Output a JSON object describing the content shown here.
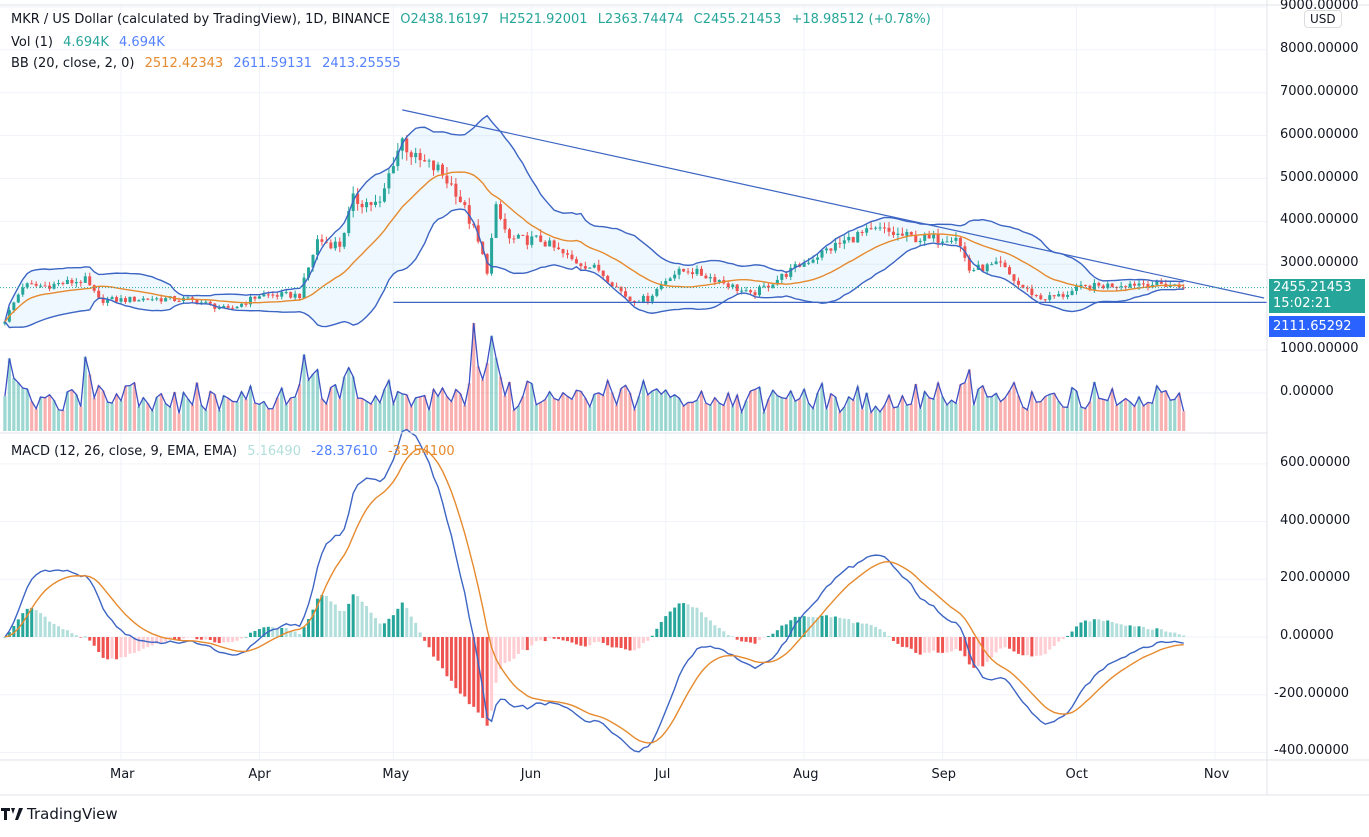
{
  "legend": {
    "symbol": "MKR / US Dollar (calculated by TradingView), 1D, BINANCE",
    "open": "O2438.16197",
    "high": "H2521.92001",
    "low": "L2363.74474",
    "close": "C2455.21453",
    "change": "+18.98512 (+0.78%)",
    "vol_label": "Vol (1)",
    "vol_value": "4.694K",
    "vol_ma": "4.694K",
    "bb_label": "BB (20, close, 2, 0)",
    "bb_basis": "2512.42343",
    "bb_upper": "2611.59131",
    "bb_lower": "2413.25555",
    "macd_label": "MACD (12, 26, close, 9, EMA, EMA)",
    "macd_hist": "5.16490",
    "macd_line": "-28.37610",
    "macd_signal": "-33.54100"
  },
  "price_axis": {
    "currency": "USD",
    "ticks": [
      "9000.00000",
      "8000.00000",
      "7000.00000",
      "6000.00000",
      "5000.00000",
      "4000.00000",
      "3000.00000",
      "1000.00000",
      "0.00000"
    ],
    "tick_values": [
      9000,
      8000,
      7000,
      6000,
      5000,
      4000,
      3000,
      1000,
      0
    ],
    "last_price": "2455.21453",
    "countdown": "15:02:21",
    "support_label": "2111.65292"
  },
  "macd_axis": {
    "ticks": [
      "600.00000",
      "400.00000",
      "200.00000",
      "0.00000",
      "-200.00000",
      "-400.00000"
    ],
    "tick_values": [
      600,
      400,
      200,
      0,
      -200,
      -400
    ]
  },
  "time_axis": {
    "ticks": [
      "Mar",
      "Apr",
      "May",
      "Jun",
      "Jul",
      "Aug",
      "Sep",
      "Oct",
      "Nov"
    ]
  },
  "brand": "TradingView",
  "colors": {
    "up": "#26a69a",
    "down": "#ef5350",
    "bb_band": "#3d65c4",
    "bb_basis": "#e68a2e",
    "bb_fill": "#2196f3",
    "macd": "#3d65c4",
    "signal": "#e68a2e",
    "hist_up_strong": "#26a69a",
    "hist_up_weak": "#b2dfdb",
    "hist_down_weak": "#ffcdd2",
    "hist_down_strong": "#ef5350"
  },
  "chart_data": {
    "type": "candlestick",
    "title": "MKR / US Dollar, 1D, BINANCE",
    "ylim": [
      0,
      9000
    ],
    "close_path": [
      {
        "date": "Feb 3",
        "close": 1700
      },
      {
        "date": "Feb 7",
        "close": 2500
      },
      {
        "date": "Feb 12",
        "close": 2500
      },
      {
        "date": "Feb 21",
        "close": 2630
      },
      {
        "date": "Feb 24",
        "close": 2170
      },
      {
        "date": "Mar 1",
        "close": 2170
      },
      {
        "date": "Mar 8",
        "close": 2200
      },
      {
        "date": "Mar 17",
        "close": 2170
      },
      {
        "date": "Mar 25",
        "close": 1930
      },
      {
        "date": "Apr 1",
        "close": 2280
      },
      {
        "date": "Apr 10",
        "close": 2280
      },
      {
        "date": "Apr 14",
        "close": 3560
      },
      {
        "date": "Apr 19",
        "close": 3450
      },
      {
        "date": "Apr 22",
        "close": 4500
      },
      {
        "date": "Apr 28",
        "close": 4380
      },
      {
        "date": "May 1",
        "close": 5430
      },
      {
        "date": "May 3",
        "close": 5900
      },
      {
        "date": "May 6",
        "close": 5430
      },
      {
        "date": "May 11",
        "close": 5200
      },
      {
        "date": "May 15",
        "close": 4730
      },
      {
        "date": "May 19",
        "close": 3800
      },
      {
        "date": "May 22",
        "close": 2870
      },
      {
        "date": "May 24",
        "close": 4270
      },
      {
        "date": "May 27",
        "close": 3570
      },
      {
        "date": "Jun 3",
        "close": 3570
      },
      {
        "date": "Jun 10",
        "close": 3100
      },
      {
        "date": "Jun 16",
        "close": 2870
      },
      {
        "date": "Jun 23",
        "close": 2170
      },
      {
        "date": "Jun 27",
        "close": 2200
      },
      {
        "date": "Jul 2",
        "close": 2750
      },
      {
        "date": "Jul 6",
        "close": 2870
      },
      {
        "date": "Jul 13",
        "close": 2630
      },
      {
        "date": "Jul 20",
        "close": 2280
      },
      {
        "date": "Jul 24",
        "close": 2520
      },
      {
        "date": "Jul 31",
        "close": 2980
      },
      {
        "date": "Aug 6",
        "close": 3330
      },
      {
        "date": "Aug 13",
        "close": 3680
      },
      {
        "date": "Aug 18",
        "close": 3800
      },
      {
        "date": "Aug 22",
        "close": 3680
      },
      {
        "date": "Aug 29",
        "close": 3570
      },
      {
        "date": "Sep 4",
        "close": 3680
      },
      {
        "date": "Sep 7",
        "close": 2870
      },
      {
        "date": "Sep 14",
        "close": 2980
      },
      {
        "date": "Sep 18",
        "close": 2520
      },
      {
        "date": "Sep 23",
        "close": 2200
      },
      {
        "date": "Sep 28",
        "close": 2280
      },
      {
        "date": "Oct 2",
        "close": 2450
      },
      {
        "date": "Oct 9",
        "close": 2520
      },
      {
        "date": "Oct 15",
        "close": 2560
      },
      {
        "date": "Oct 22",
        "close": 2520
      },
      {
        "date": "Oct 25",
        "close": 2455.21453
      }
    ],
    "volume_spikes": [
      "Feb 21",
      "May 19"
    ],
    "trendline": {
      "from": {
        "date": "May 3",
        "price": 6600
      },
      "to": {
        "date": "Nov 12",
        "price": 2215
      }
    },
    "support_line": {
      "from_date": "May 1",
      "price": 2111.65292
    },
    "indicators": [
      "Bollinger Bands (20, 2)",
      "Volume",
      "MACD (12, 26, 9)"
    ]
  }
}
